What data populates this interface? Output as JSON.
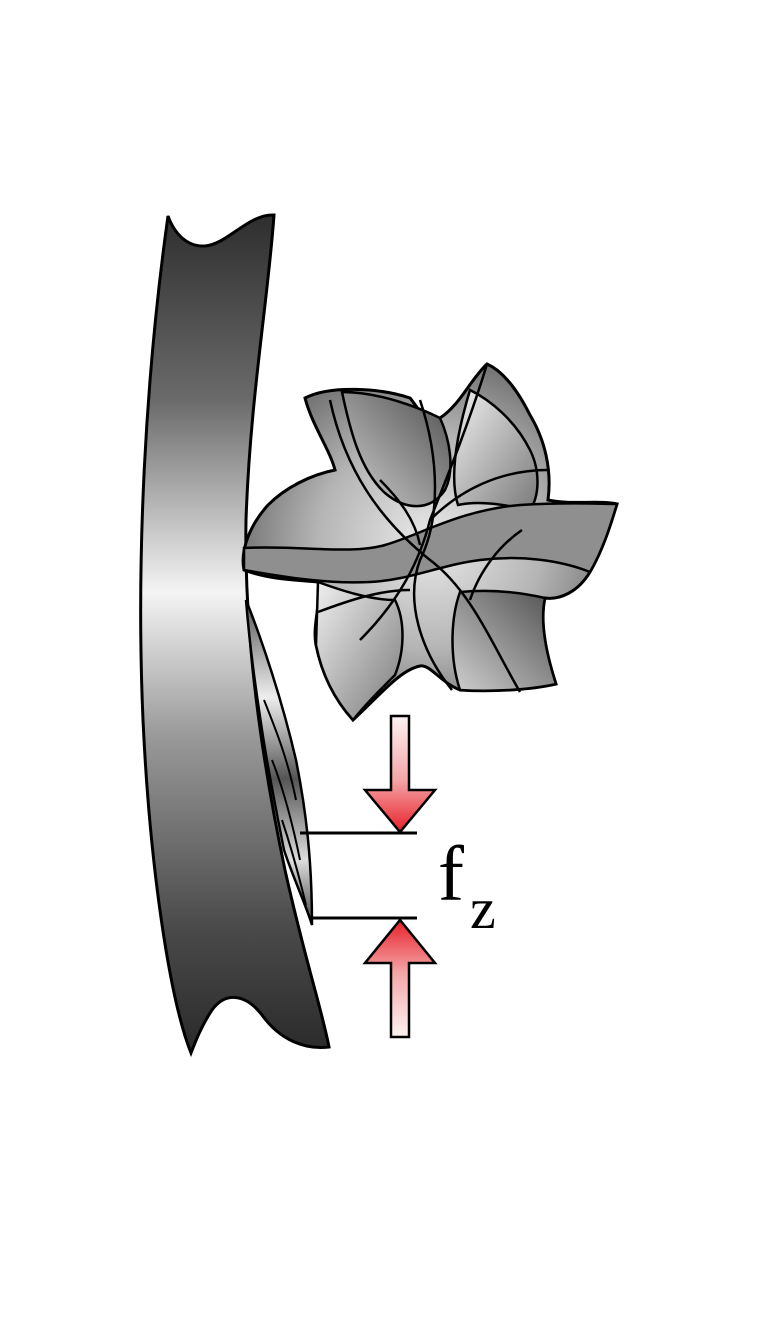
{
  "diagram": {
    "label": {
      "main": "f",
      "subscript": "z"
    },
    "parts": {
      "workpiece": "workpiece-icon",
      "cutter": "milling-cutter-icon",
      "feed_arrows": "arrow-icon"
    },
    "colors": {
      "arrow_red": "#e8202a",
      "arrow_light": "#fbe7e7",
      "metal_dark": "#3a3a3a",
      "metal_light": "#f2f2f2",
      "outline": "#000000"
    }
  }
}
